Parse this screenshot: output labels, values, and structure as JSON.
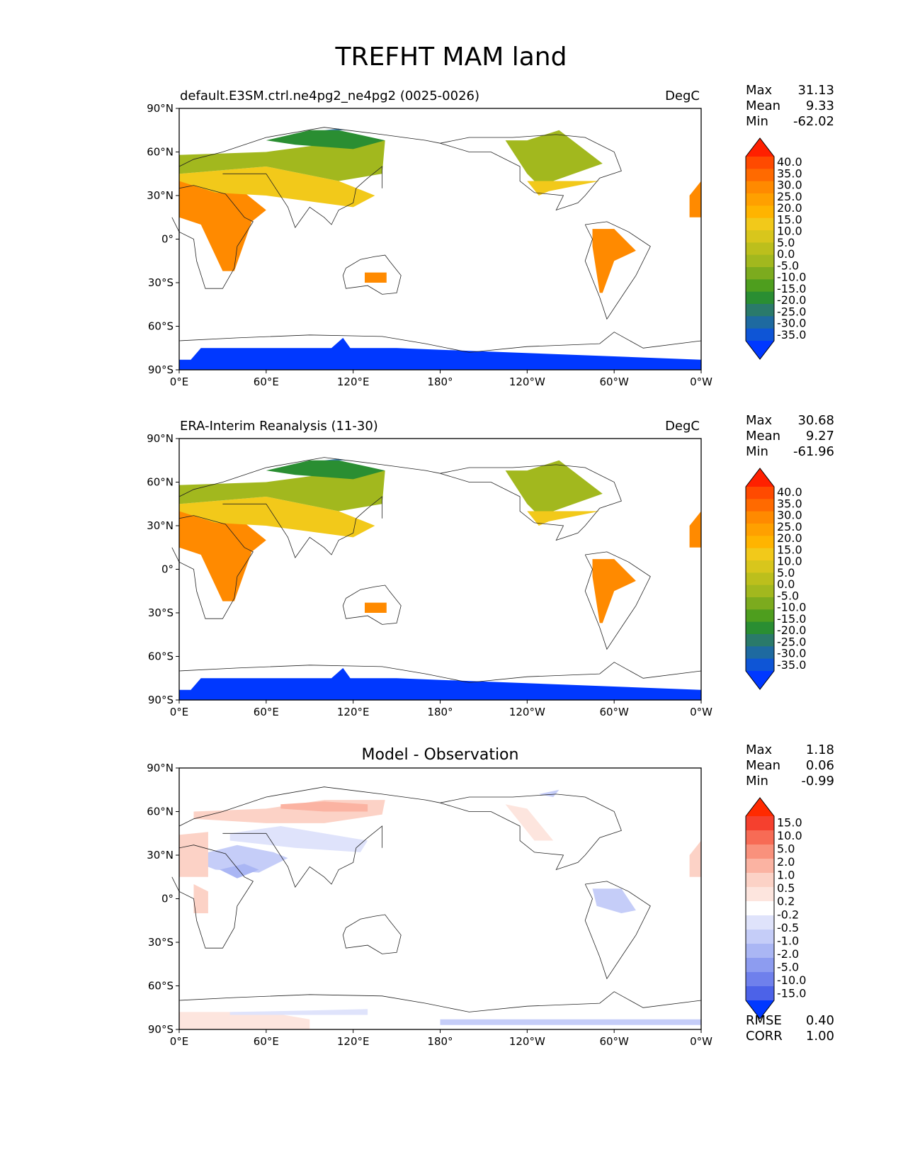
{
  "figure": {
    "title": "TREFHT MAM land"
  },
  "chart_data": [
    {
      "type": "heatmap",
      "title": "default.E3SM.ctrl.ne4pg2_ne4pg2 (0025-0026)",
      "units": "DegC",
      "x_ticks": [
        "0°E",
        "60°E",
        "120°E",
        "180°",
        "120°W",
        "60°W",
        "0°W"
      ],
      "y_ticks": [
        "90°N",
        "60°N",
        "30°N",
        "0°",
        "30°S",
        "60°S",
        "90°S"
      ],
      "xlim": [
        0,
        360
      ],
      "ylim": [
        -90,
        90
      ],
      "stats": [
        {
          "label": "Max",
          "value": "31.13"
        },
        {
          "label": "Mean",
          "value": "9.33"
        },
        {
          "label": "Min",
          "value": "-62.02"
        }
      ],
      "colorbar": {
        "labels": [
          "40.0",
          "35.0",
          "30.0",
          "25.0",
          "20.0",
          "15.0",
          "10.0",
          "5.0",
          "0.0",
          "-5.0",
          "-10.0",
          "-15.0",
          "-20.0",
          "-25.0",
          "-30.0",
          "-35.0"
        ],
        "colors": [
          "#ff2000",
          "#ff4a00",
          "#ff6a00",
          "#ff8a00",
          "#ffa000",
          "#ffb400",
          "#f2c91a",
          "#d8c61c",
          "#bcbf1c",
          "#a2b81e",
          "#7cab1e",
          "#4e9e1e",
          "#2a8e32",
          "#2a7a6a",
          "#1e6aa0",
          "#0e55d6",
          "#0038ff"
        ],
        "extend": "both"
      },
      "regions": [
        {
          "name": "Africa",
          "lon": [
            0,
            22,
            45,
            60,
            50,
            38,
            30,
            15,
            0
          ],
          "lat": [
            40,
            37,
            32,
            20,
            12,
            -22,
            -22,
            10,
            15
          ],
          "value": 25
        },
        {
          "name": "Eurasia south",
          "lon": [
            0,
            60,
            110,
            135,
            120,
            60,
            25,
            0
          ],
          "lat": [
            45,
            50,
            40,
            30,
            22,
            30,
            32,
            40
          ],
          "value": 10
        },
        {
          "name": "Eurasia north",
          "lon": [
            0,
            60,
            120,
            142,
            140,
            110,
            60,
            0
          ],
          "lat": [
            58,
            60,
            68,
            68,
            45,
            40,
            50,
            45
          ],
          "value": -5
        },
        {
          "name": "Siberia arctic",
          "lon": [
            60,
            90,
            110,
            142,
            120,
            80,
            60
          ],
          "lat": [
            68,
            75,
            75,
            68,
            62,
            65,
            68
          ],
          "value": -20
        },
        {
          "name": "Arctic core",
          "lon": [
            100,
            110,
            115
          ],
          "lat": [
            75,
            76,
            75
          ],
          "value": -30
        },
        {
          "name": "North America",
          "lon": [
            225,
            240,
            262,
            292,
            258,
            250,
            240
          ],
          "lat": [
            68,
            68,
            75,
            52,
            40,
            35,
            45
          ],
          "value": -5
        },
        {
          "name": "North America south",
          "lon": [
            240,
            290,
            255,
            248
          ],
          "lat": [
            40,
            40,
            33,
            30
          ],
          "value": 10
        },
        {
          "name": "South America",
          "lon": [
            285,
            300,
            315,
            300,
            292,
            290,
            285
          ],
          "lat": [
            7,
            7,
            -8,
            -15,
            -37,
            -37,
            -5
          ],
          "value": 25
        },
        {
          "name": "Australia",
          "lon": [
            128,
            143,
            143,
            128
          ],
          "lat": [
            -23,
            -23,
            -30,
            -30
          ],
          "value": 25
        },
        {
          "name": "Iberia edge",
          "lon": [
            352,
            360,
            360,
            352
          ],
          "lat": [
            15,
            15,
            40,
            30
          ],
          "value": 25
        },
        {
          "name": "Antarctica",
          "lon": [
            0,
            8,
            15,
            105,
            113,
            118,
            150,
            360,
            360,
            0
          ],
          "lat": [
            -83,
            -83,
            -75,
            -75,
            -68,
            -75,
            -75,
            -83,
            -90,
            -90
          ],
          "value": -45
        }
      ]
    },
    {
      "type": "heatmap",
      "title": "ERA-Interim Reanalysis (11-30)",
      "units": "DegC",
      "x_ticks": [
        "0°E",
        "60°E",
        "120°E",
        "180°",
        "120°W",
        "60°W",
        "0°W"
      ],
      "y_ticks": [
        "90°N",
        "60°N",
        "30°N",
        "0°",
        "30°S",
        "60°S",
        "90°S"
      ],
      "xlim": [
        0,
        360
      ],
      "ylim": [
        -90,
        90
      ],
      "stats": [
        {
          "label": "Max",
          "value": "30.68"
        },
        {
          "label": "Mean",
          "value": "9.27"
        },
        {
          "label": "Min",
          "value": "-61.96"
        }
      ],
      "colorbar": {
        "labels": [
          "40.0",
          "35.0",
          "30.0",
          "25.0",
          "20.0",
          "15.0",
          "10.0",
          "5.0",
          "0.0",
          "-5.0",
          "-10.0",
          "-15.0",
          "-20.0",
          "-25.0",
          "-30.0",
          "-35.0"
        ],
        "colors": [
          "#ff2000",
          "#ff4a00",
          "#ff6a00",
          "#ff8a00",
          "#ffa000",
          "#ffb400",
          "#f2c91a",
          "#d8c61c",
          "#bcbf1c",
          "#a2b81e",
          "#7cab1e",
          "#4e9e1e",
          "#2a8e32",
          "#2a7a6a",
          "#1e6aa0",
          "#0e55d6",
          "#0038ff"
        ],
        "extend": "both"
      },
      "regions": [
        {
          "name": "Africa",
          "lon": [
            0,
            22,
            45,
            60,
            50,
            38,
            30,
            15,
            0
          ],
          "lat": [
            40,
            37,
            32,
            20,
            12,
            -22,
            -22,
            10,
            15
          ],
          "value": 25
        },
        {
          "name": "Eurasia south",
          "lon": [
            0,
            60,
            110,
            135,
            120,
            60,
            25,
            0
          ],
          "lat": [
            45,
            50,
            40,
            30,
            22,
            30,
            32,
            40
          ],
          "value": 10
        },
        {
          "name": "Eurasia north",
          "lon": [
            0,
            60,
            120,
            142,
            140,
            110,
            60,
            0
          ],
          "lat": [
            58,
            60,
            68,
            68,
            45,
            40,
            50,
            45
          ],
          "value": -5
        },
        {
          "name": "Siberia arctic",
          "lon": [
            60,
            90,
            110,
            142,
            120,
            80,
            60
          ],
          "lat": [
            68,
            75,
            75,
            68,
            62,
            65,
            68
          ],
          "value": -20
        },
        {
          "name": "Arctic core",
          "lon": [
            100,
            110,
            115
          ],
          "lat": [
            75,
            76,
            75
          ],
          "value": -30
        },
        {
          "name": "North America",
          "lon": [
            225,
            240,
            262,
            292,
            258,
            250,
            240
          ],
          "lat": [
            68,
            68,
            75,
            52,
            40,
            35,
            45
          ],
          "value": -5
        },
        {
          "name": "North America south",
          "lon": [
            240,
            290,
            255,
            248
          ],
          "lat": [
            40,
            40,
            33,
            30
          ],
          "value": 10
        },
        {
          "name": "South America",
          "lon": [
            285,
            300,
            315,
            300,
            292,
            290,
            285
          ],
          "lat": [
            7,
            7,
            -8,
            -15,
            -37,
            -37,
            -5
          ],
          "value": 25
        },
        {
          "name": "Australia",
          "lon": [
            128,
            143,
            143,
            128
          ],
          "lat": [
            -23,
            -23,
            -30,
            -30
          ],
          "value": 25
        },
        {
          "name": "Iberia edge",
          "lon": [
            352,
            360,
            360,
            352
          ],
          "lat": [
            15,
            15,
            40,
            30
          ],
          "value": 25
        },
        {
          "name": "Antarctica",
          "lon": [
            0,
            8,
            15,
            105,
            113,
            118,
            150,
            360,
            360,
            0
          ],
          "lat": [
            -83,
            -83,
            -75,
            -75,
            -68,
            -75,
            -75,
            -83,
            -90,
            -90
          ],
          "value": -45
        }
      ]
    },
    {
      "type": "heatmap",
      "title": "Model - Observation",
      "units": "",
      "x_ticks": [
        "0°E",
        "60°E",
        "120°E",
        "180°",
        "120°W",
        "60°W",
        "0°W"
      ],
      "y_ticks": [
        "90°N",
        "60°N",
        "30°N",
        "0°",
        "30°S",
        "60°S",
        "90°S"
      ],
      "xlim": [
        0,
        360
      ],
      "ylim": [
        -90,
        90
      ],
      "stats": [
        {
          "label": "Max",
          "value": "1.18"
        },
        {
          "label": "Mean",
          "value": "0.06"
        },
        {
          "label": "Min",
          "value": "-0.99"
        }
      ],
      "extra_stats": [
        {
          "label": "RMSE",
          "value": "0.40"
        },
        {
          "label": "CORR",
          "value": "1.00"
        }
      ],
      "colorbar": {
        "labels": [
          "15.0",
          "10.0",
          "5.0",
          "2.0",
          "1.0",
          "0.5",
          "0.2",
          "-0.2",
          "-0.5",
          "-1.0",
          "-2.0",
          "-5.0",
          "-10.0",
          "-15.0"
        ],
        "colors": [
          "#ff2a00",
          "#f5402e",
          "#f76b55",
          "#f9917c",
          "#fbb3a2",
          "#fcd2c6",
          "#fde5de",
          "#ffffff",
          "#dfe3fb",
          "#c5cdf8",
          "#aab6f4",
          "#8d9cf0",
          "#6f80ec",
          "#4c62e8",
          "#0038ff"
        ],
        "extend": "both"
      },
      "regions": [
        {
          "name": "Eurasia warm band",
          "lon": [
            10,
            60,
            100,
            142,
            140,
            100,
            60,
            10
          ],
          "lat": [
            60,
            62,
            68,
            68,
            58,
            52,
            52,
            55
          ],
          "value": 0.7
        },
        {
          "name": "Siberia warm core",
          "lon": [
            70,
            100,
            130,
            130,
            100,
            70
          ],
          "lat": [
            65,
            67,
            65,
            60,
            60,
            62
          ],
          "value": 1.5
        },
        {
          "name": "Middle East cool",
          "lon": [
            12,
            40,
            65,
            75,
            55,
            25,
            12
          ],
          "lat": [
            30,
            37,
            32,
            28,
            18,
            20,
            25
          ],
          "value": -0.7
        },
        {
          "name": "Arabia cool core",
          "lon": [
            28,
            45,
            55,
            40
          ],
          "lat": [
            20,
            24,
            20,
            14
          ],
          "value": -1.5
        },
        {
          "name": "Europe warm",
          "lon": [
            0,
            20,
            20,
            0
          ],
          "lat": [
            44,
            46,
            15,
            15
          ],
          "value": 0.7
        },
        {
          "name": "Africa warm",
          "lon": [
            10,
            20,
            20,
            10
          ],
          "lat": [
            10,
            5,
            -10,
            -10
          ],
          "value": 0.7
        },
        {
          "name": "Central Asia cool",
          "lon": [
            35,
            70,
            130,
            125,
            80,
            35
          ],
          "lat": [
            45,
            50,
            40,
            32,
            35,
            40
          ],
          "value": -0.35
        },
        {
          "name": "North America warm",
          "lon": [
            225,
            240,
            258,
            245
          ],
          "lat": [
            65,
            62,
            40,
            40
          ],
          "value": 0.35
        },
        {
          "name": "Alaska cool",
          "lon": [
            248,
            262,
            258
          ],
          "lat": [
            72,
            75,
            70
          ],
          "value": -0.7
        },
        {
          "name": "South America cool",
          "lon": [
            285,
            305,
            315,
            305,
            288
          ],
          "lat": [
            7,
            7,
            -8,
            -10,
            -5
          ],
          "value": -0.7
        },
        {
          "name": "Antarctica warm",
          "lon": [
            0,
            60,
            90,
            90,
            0
          ],
          "lat": [
            -78,
            -78,
            -83,
            -90,
            -90
          ],
          "value": 0.35
        },
        {
          "name": "Antarctica cool",
          "lon": [
            180,
            360,
            360,
            180
          ],
          "lat": [
            -83,
            -83,
            -87,
            -87
          ],
          "value": -0.7
        },
        {
          "name": "Antarctica cool strip",
          "lon": [
            35,
            90,
            130,
            130,
            35
          ],
          "lat": [
            -78,
            -77,
            -76,
            -80,
            -80
          ],
          "value": -0.35
        },
        {
          "name": "Iberia edge warm",
          "lon": [
            352,
            360,
            360,
            352
          ],
          "lat": [
            15,
            15,
            40,
            30
          ],
          "value": 0.7
        }
      ]
    }
  ]
}
